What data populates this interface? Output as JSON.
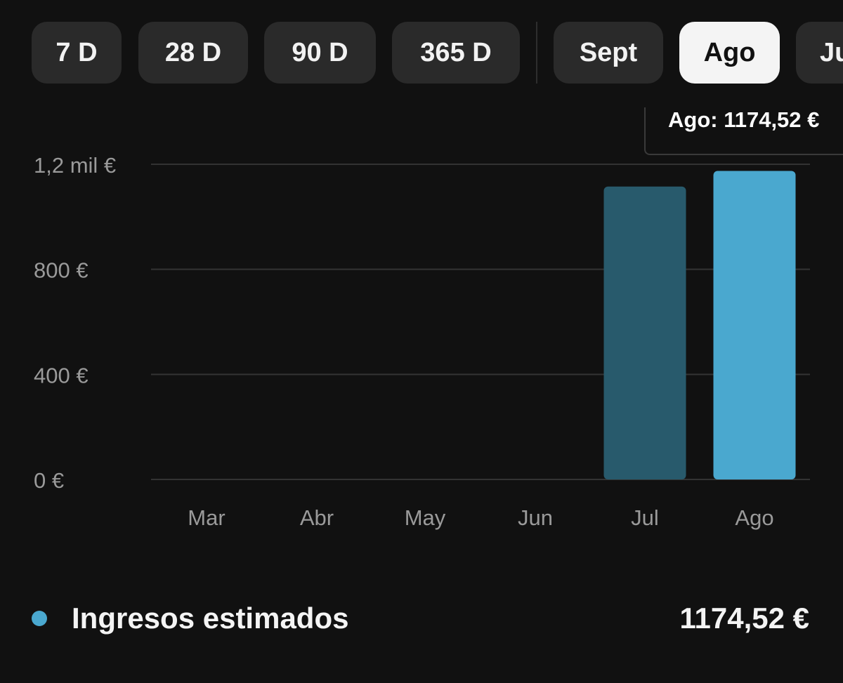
{
  "tabs": [
    {
      "label": "7 D",
      "selected": false
    },
    {
      "label": "28 D",
      "selected": false
    },
    {
      "label": "90 D",
      "selected": false
    },
    {
      "label": "365 D",
      "selected": false
    },
    {
      "label": "Sept",
      "selected": false
    },
    {
      "label": "Ago",
      "selected": true
    },
    {
      "label": "Jul",
      "selected": false
    }
  ],
  "tooltip": {
    "text": "Ago: 1174,52 €"
  },
  "legend": {
    "label": "Ingresos estimados",
    "value": "1174,52 €"
  },
  "colors": {
    "accent": "#4aa8cf",
    "muted_bar": "#285a6c",
    "grid": "#333333",
    "axis_text": "#9a9a9a"
  },
  "chart_data": {
    "type": "bar",
    "categories": [
      "Mar",
      "Abr",
      "May",
      "Jun",
      "Jul",
      "Ago"
    ],
    "values": [
      0,
      0,
      0,
      0,
      1115,
      1174.52
    ],
    "highlighted": "Ago",
    "ylim": [
      0,
      1200
    ],
    "yticks": [
      0,
      400,
      800,
      1200
    ],
    "ytick_labels": [
      "0 €",
      "400 €",
      "800 €",
      "1,2 mil €"
    ],
    "grid": true,
    "legend": "bottom"
  }
}
